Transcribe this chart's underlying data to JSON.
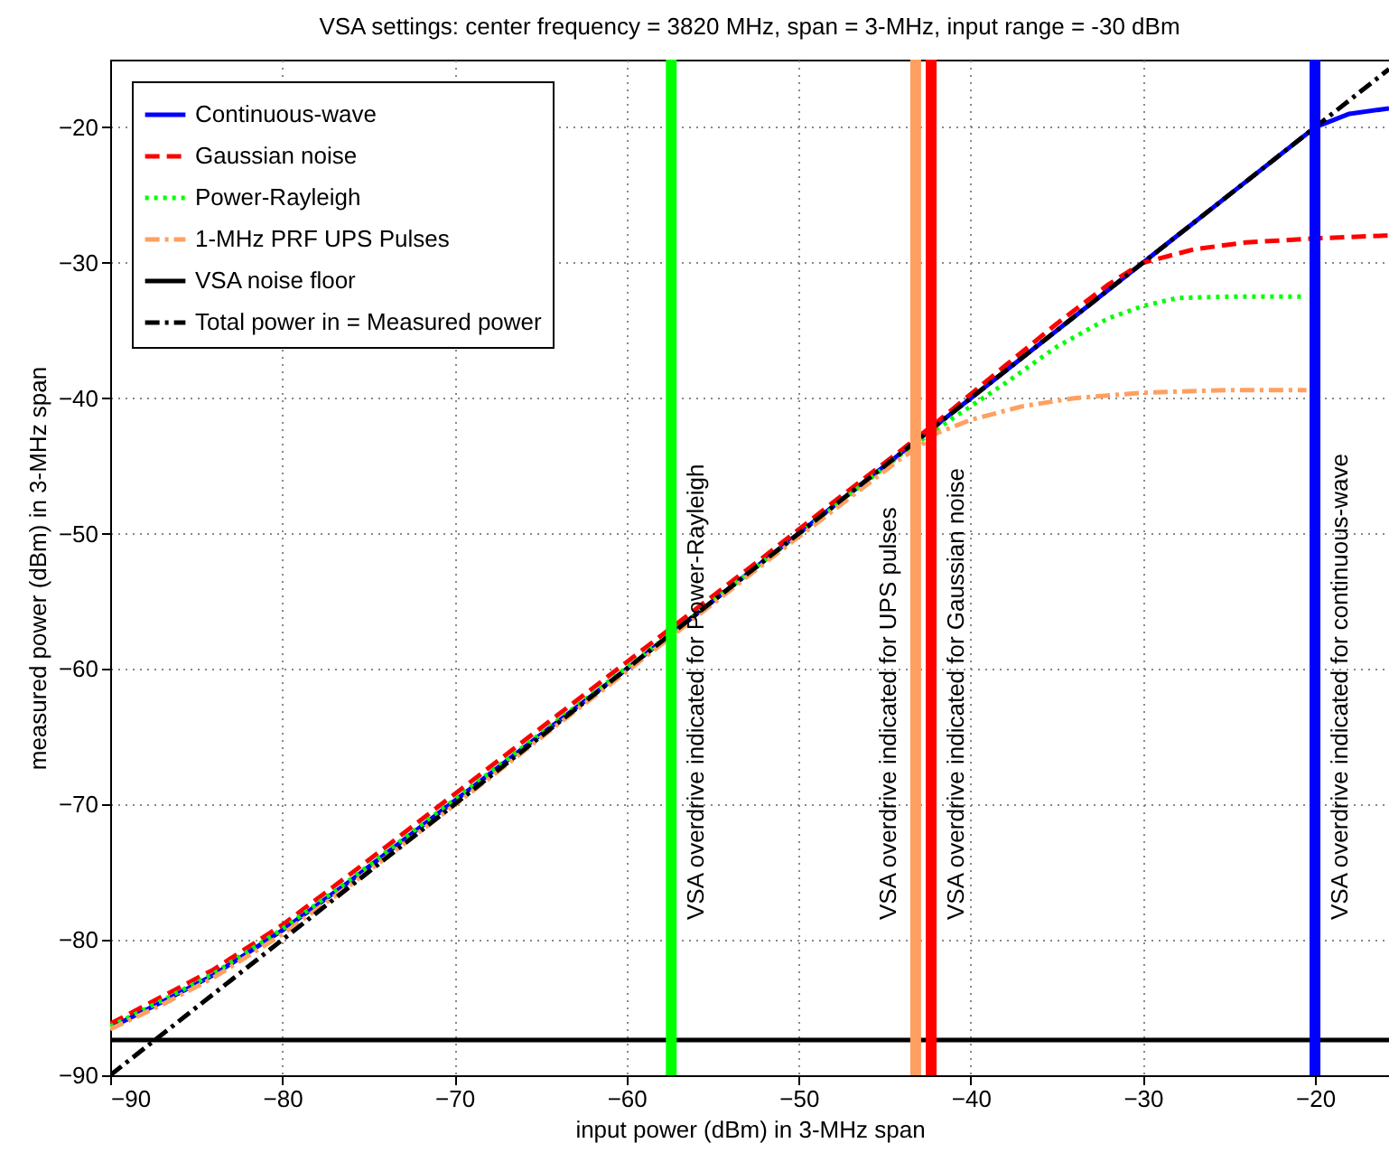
{
  "chart_data": {
    "type": "line",
    "title": "VSA settings: center frequency = 3820 MHz, span = 3-MHz, input range = -30 dBm",
    "xlabel": "input power (dBm) in 3-MHz span",
    "ylabel": "measured power (dBm) in 3-MHz span",
    "xlim": [
      -90,
      -15.7
    ],
    "ylim": [
      -90,
      -15
    ],
    "xticks": [
      -90,
      -80,
      -70,
      -60,
      -50,
      -40,
      -30,
      -20
    ],
    "yticks": [
      -90,
      -80,
      -70,
      -60,
      -50,
      -40,
      -30,
      -20
    ],
    "grid": true,
    "legend": "top left",
    "series": [
      {
        "name": "Continuous-wave",
        "color": "#0000ff",
        "line_style": "solid",
        "x": [
          -90,
          -87,
          -84,
          -80,
          -76,
          -72,
          -68,
          -64,
          -60,
          -56,
          -52,
          -48,
          -44,
          -42,
          -40,
          -36,
          -32,
          -28,
          -24,
          -20,
          -18,
          -15.7
        ],
        "values": [
          -86.5,
          -84.6,
          -82.6,
          -79.3,
          -75.6,
          -71.7,
          -67.8,
          -63.9,
          -60,
          -56,
          -52,
          -48,
          -44,
          -42,
          -40,
          -36,
          -32,
          -28,
          -24,
          -20,
          -19,
          -18.6
        ]
      },
      {
        "name": "Gaussian noise",
        "color": "#ff0000",
        "line_style": "dashed",
        "x": [
          -90,
          -87,
          -84,
          -80,
          -76,
          -72,
          -68,
          -64,
          -60,
          -56,
          -52,
          -48,
          -44,
          -42,
          -40,
          -38,
          -35,
          -32,
          -30,
          -27,
          -24,
          -20,
          -16,
          -15.7
        ],
        "values": [
          -86.2,
          -84.2,
          -82.2,
          -78.9,
          -75.1,
          -71.2,
          -67.3,
          -63.4,
          -59.5,
          -55.6,
          -51.7,
          -47.7,
          -43.8,
          -41.8,
          -39.7,
          -37.6,
          -34.5,
          -31.6,
          -30,
          -29,
          -28.5,
          -28.2,
          -28,
          -28
        ]
      },
      {
        "name": "Power-Rayleigh",
        "color": "#00ff00",
        "line_style": "dotted",
        "x": [
          -90,
          -87,
          -84,
          -80,
          -76,
          -72,
          -68,
          -64,
          -60,
          -56,
          -52,
          -48,
          -44,
          -42,
          -40,
          -38,
          -35,
          -32,
          -30,
          -28,
          -25,
          -20.5
        ],
        "values": [
          -86.4,
          -84.5,
          -82.5,
          -79.2,
          -75.5,
          -71.6,
          -67.7,
          -63.8,
          -59.9,
          -56,
          -52,
          -48.1,
          -44.1,
          -42.3,
          -40.6,
          -38.9,
          -36.2,
          -34.1,
          -33.2,
          -32.6,
          -32.5,
          -32.5
        ]
      },
      {
        "name": "1-MHz PRF UPS Pulses",
        "color": "#ffa060",
        "line_style": "dashdot",
        "x": [
          -90,
          -87,
          -84,
          -80,
          -76,
          -72,
          -68,
          -64,
          -60,
          -56,
          -52,
          -48,
          -44,
          -43,
          -42,
          -40,
          -37,
          -34,
          -30,
          -25,
          -20.5
        ],
        "values": [
          -86.6,
          -84.8,
          -82.8,
          -79.6,
          -75.9,
          -72,
          -68.1,
          -64.1,
          -60.2,
          -56.2,
          -52.2,
          -48.3,
          -44.4,
          -43.6,
          -42.6,
          -41.6,
          -40.6,
          -40,
          -39.6,
          -39.4,
          -39.4
        ]
      },
      {
        "name": "VSA noise floor",
        "color": "#000000",
        "line_style": "solid",
        "x": [
          -90,
          -15.7
        ],
        "values": [
          -87.4,
          -87.4
        ]
      },
      {
        "name": "Total power in = Measured power",
        "color": "#000000",
        "line_style": "dashdot",
        "x": [
          -90,
          -15.7
        ],
        "values": [
          -90,
          -15.7
        ]
      }
    ],
    "ref_lines": [
      {
        "axis": "x",
        "value": -57.4,
        "label": "VSA overdrive indicated for Power-Rayleigh",
        "color": "#00ff00"
      },
      {
        "axis": "x",
        "value": -43.2,
        "label": "VSA overdrive indicated for UPS pulses",
        "color": "#ffa060"
      },
      {
        "axis": "x",
        "value": -42.3,
        "label": "VSA overdrive indicated for Gaussian noise",
        "color": "#ff0000"
      },
      {
        "axis": "x",
        "value": -20,
        "label": "VSA overdrive indicated for continuous-wave",
        "color": "#0000ff"
      }
    ]
  }
}
